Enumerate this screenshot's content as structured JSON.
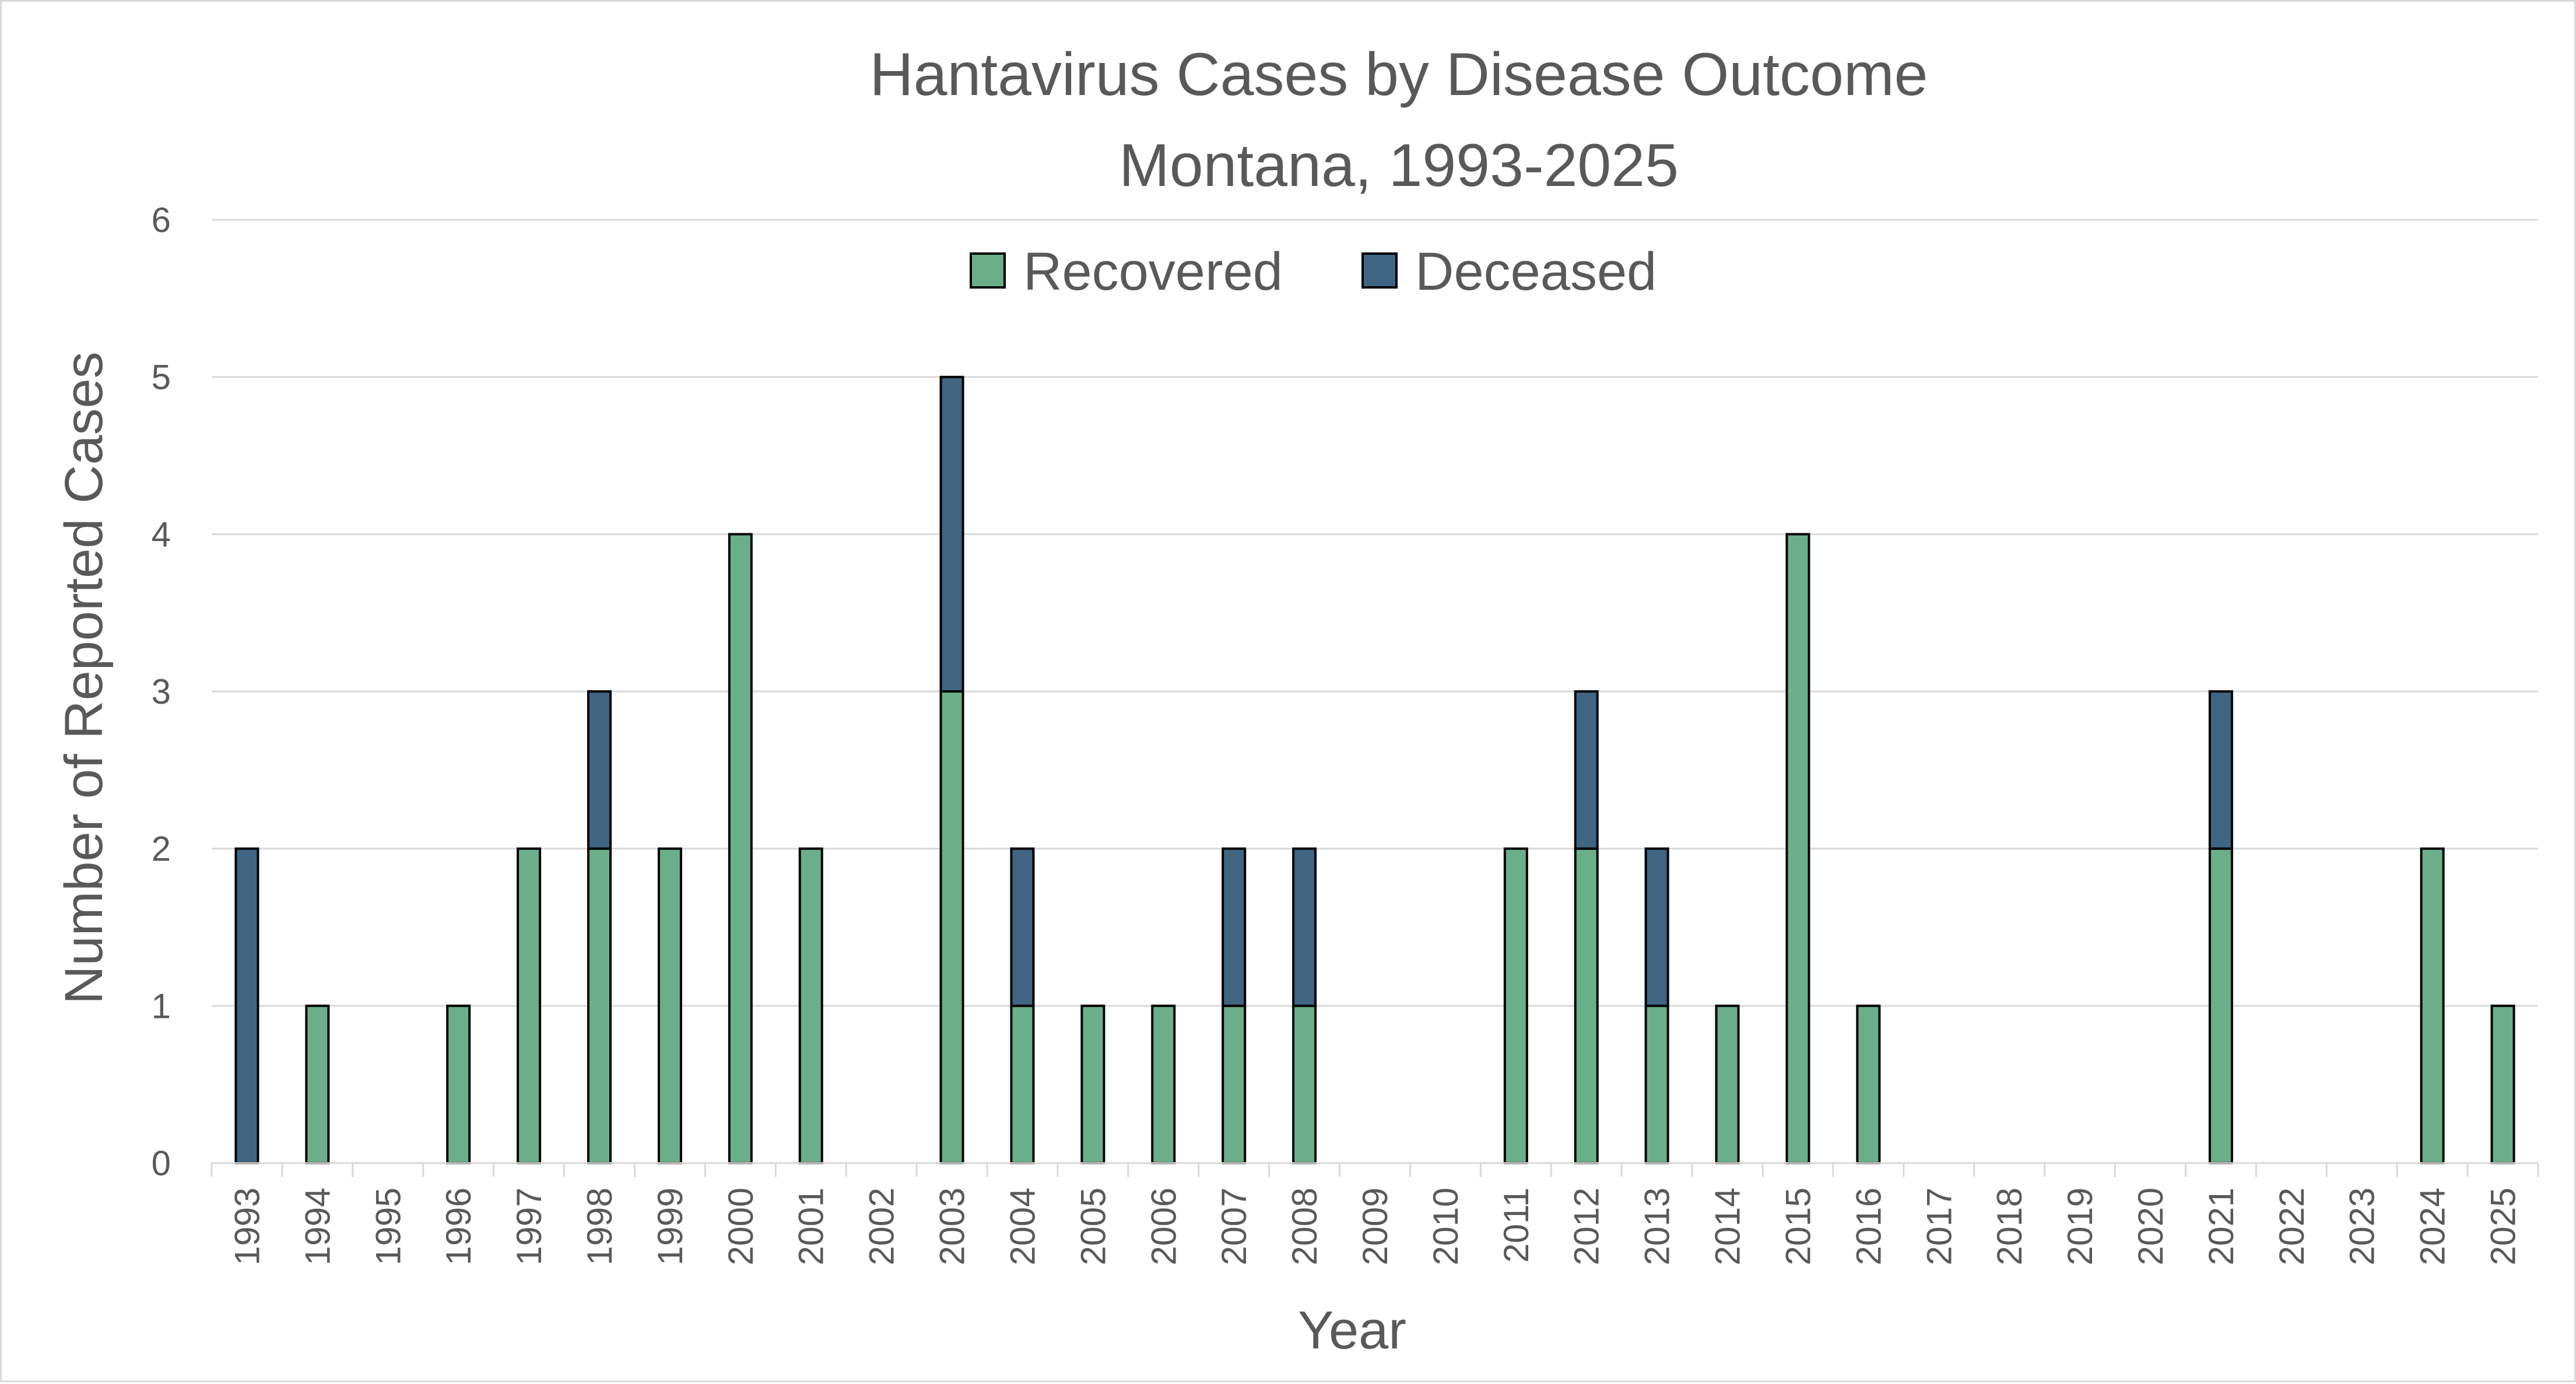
{
  "chart_data": {
    "type": "bar",
    "stacked": true,
    "title": "Hantavirus Cases by Disease Outcome",
    "subtitle": "Montana, 1993-2025",
    "xlabel": "Year",
    "ylabel": "Number of Reported Cases",
    "ylim": [
      0,
      6
    ],
    "yticks": [
      "0",
      "1",
      "2",
      "3",
      "4",
      "5",
      "6"
    ],
    "grid": true,
    "legend_position": "top-center",
    "categories": [
      "1993",
      "1994",
      "1995",
      "1996",
      "1997",
      "1998",
      "1999",
      "2000",
      "2001",
      "2002",
      "2003",
      "2004",
      "2005",
      "2006",
      "2007",
      "2008",
      "2009",
      "2010",
      "2011",
      "2012",
      "2013",
      "2014",
      "2015",
      "2016",
      "2017",
      "2018",
      "2019",
      "2020",
      "2021",
      "2022",
      "2023",
      "2024",
      "2025"
    ],
    "series": [
      {
        "name": "Recovered",
        "color": "#6BAF8A",
        "values": [
          0,
          1,
          0,
          1,
          2,
          2,
          2,
          4,
          2,
          0,
          3,
          1,
          1,
          1,
          1,
          1,
          0,
          0,
          2,
          2,
          1,
          1,
          4,
          1,
          0,
          0,
          0,
          0,
          2,
          0,
          0,
          2,
          1
        ]
      },
      {
        "name": "Deceased",
        "color": "#3F6582",
        "values": [
          2,
          0,
          0,
          0,
          0,
          1,
          0,
          0,
          0,
          0,
          2,
          1,
          0,
          0,
          1,
          1,
          0,
          0,
          0,
          1,
          1,
          0,
          0,
          0,
          0,
          0,
          0,
          0,
          1,
          0,
          0,
          0,
          0
        ]
      }
    ]
  }
}
